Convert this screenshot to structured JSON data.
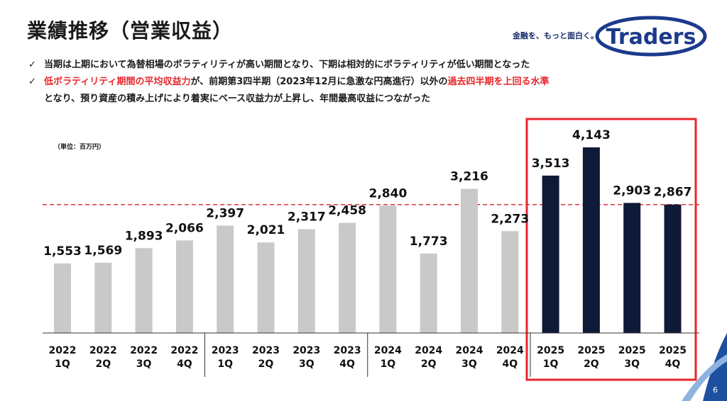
{
  "title": "業績推移（営業収益）",
  "tagline": "金融を、もっと面白く。",
  "logo_text": "Traders",
  "bullets": {
    "line1": "当期は上期において為替相場のボラティリティが高い期間となり、下期は相対的にボラティリティが低い期間となった",
    "line2_red1": "低ボラティリティ期間の平均収益力",
    "line2_mid": "が、前期第3四半期（2023年12月に急激な円高進行）以外の",
    "line2_red2": "過去四半期を上回る水準",
    "line3": "となり、預り資産の積み上げにより着実にベース収益力が上昇し、年間最高収益につながった"
  },
  "unit_label": "（単位：百万円）",
  "page_number": "6",
  "colors": {
    "gray_bar": "#c9c9c9",
    "navy_bar": "#0f1a38",
    "highlight_red": "#e8262b",
    "dashed_line": "#d9363e",
    "logo_navy": "#1b3a8c",
    "corner_blue": "#1e4fa0"
  },
  "chart_data": {
    "type": "bar",
    "categories": [
      [
        "2022",
        "1Q"
      ],
      [
        "2022",
        "2Q"
      ],
      [
        "2022",
        "3Q"
      ],
      [
        "2022",
        "4Q"
      ],
      [
        "2023",
        "1Q"
      ],
      [
        "2023",
        "2Q"
      ],
      [
        "2023",
        "3Q"
      ],
      [
        "2023",
        "4Q"
      ],
      [
        "2024",
        "1Q"
      ],
      [
        "2024",
        "2Q"
      ],
      [
        "2024",
        "3Q"
      ],
      [
        "2024",
        "4Q"
      ],
      [
        "2025",
        "1Q"
      ],
      [
        "2025",
        "2Q"
      ],
      [
        "2025",
        "3Q"
      ],
      [
        "2025",
        "4Q"
      ]
    ],
    "values": [
      1553,
      1569,
      1893,
      2066,
      2397,
      2021,
      2317,
      2458,
      2840,
      1773,
      3216,
      2273,
      3513,
      4143,
      2903,
      2867
    ],
    "value_labels": [
      "1,553",
      "1,569",
      "1,893",
      "2,066",
      "2,397",
      "2,021",
      "2,317",
      "2,458",
      "2,840",
      "1,773",
      "3,216",
      "2,273",
      "3,513",
      "4,143",
      "2,903",
      "2,867"
    ],
    "highlighted": [
      12,
      13,
      14,
      15
    ],
    "reference_line": 2867,
    "ylim": [
      0,
      4143
    ],
    "ylabel": "（単位：百万円）",
    "grid": false
  }
}
